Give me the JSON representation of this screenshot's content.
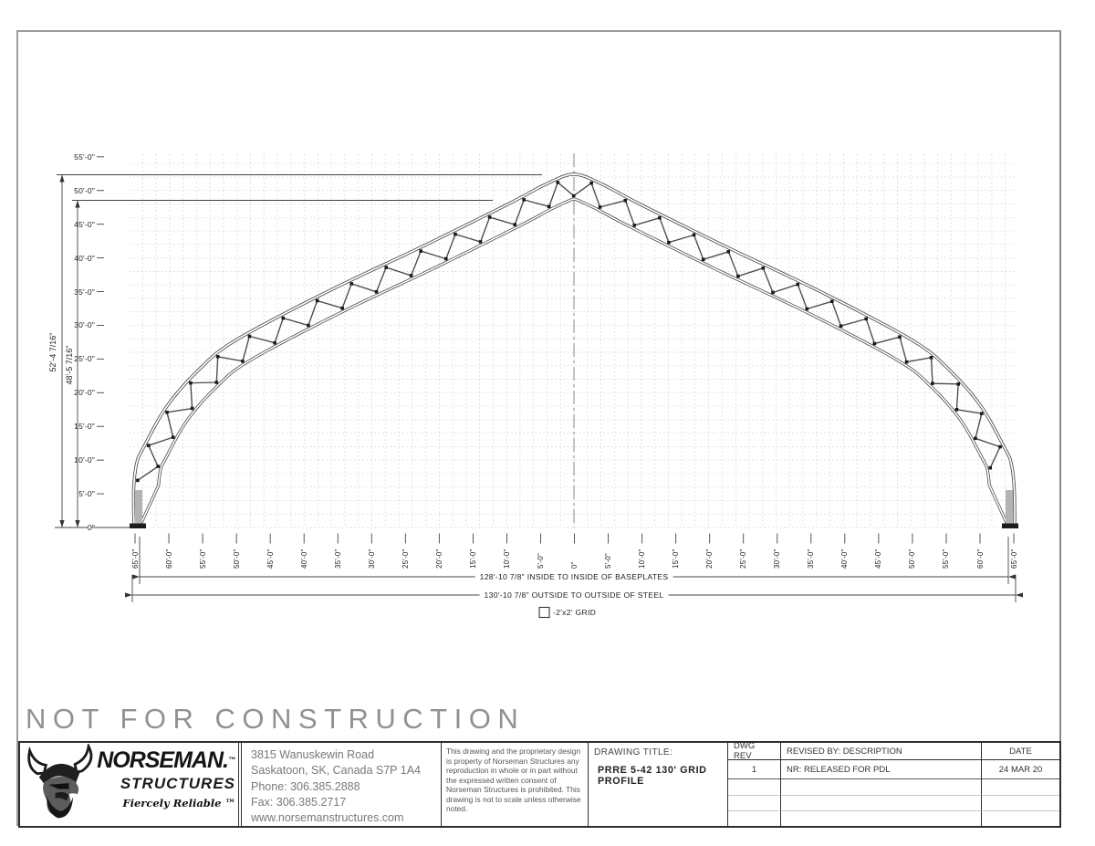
{
  "watermark": "NOT FOR CONSTRUCTION",
  "drawing": {
    "y_axis_labels": [
      "55'-0\"",
      "50'-0\"",
      "45'-0\"",
      "40'-0\"",
      "35'-0\"",
      "30'-0\"",
      "25'-0\"",
      "20'-0\"",
      "15'-0\"",
      "10'-0\"",
      "5'-0\"",
      "0\""
    ],
    "x_axis_labels": [
      "65'-0\"",
      "60'-0\"",
      "55'-0\"",
      "50'-0\"",
      "45'-0\"",
      "40'-0\"",
      "35'-0\"",
      "30'-0\"",
      "25'-0\"",
      "20'-0\"",
      "15'-0\"",
      "10'-0\"",
      "5'-0\"",
      "0\"",
      "5'-0\"",
      "10'-0\"",
      "15'-0\"",
      "20'-0\"",
      "25'-0\"",
      "30'-0\"",
      "35'-0\"",
      "40'-0\"",
      "45'-0\"",
      "50'-0\"",
      "55'-0\"",
      "60'-0\"",
      "65'-0\""
    ],
    "dim_height_outside": "52'-4 7/16\"",
    "dim_height_inside": "48'-5 7/16\"",
    "dim_width_inside": "128'-10 7/8\" INSIDE TO INSIDE OF BASEPLATES",
    "dim_width_outside": "130'-10 7/8\" OUTSIDE TO OUTSIDE OF STEEL",
    "grid_legend": "-2'x2' GRID"
  },
  "title_block": {
    "logo": {
      "name": "NORSEMAN.",
      "trademark": "™",
      "sub": "STRUCTURES",
      "tagline": "Fiercely Reliable ™"
    },
    "address_lines": [
      "3815 Wanuskewin Road",
      "Saskatoon, SK, Canada S7P 1A4",
      "Phone: 306.385.2888",
      "Fax: 306.385.2717",
      "www.norsemanstructures.com"
    ],
    "legal": "This drawing and the proprietary design is property of Norseman Structures any reproduction in whole or in part without the expressed written consent of Norseman Structures is prohibited. This drawing is not to scale unless otherwise noted.",
    "drawing_title_label": "DRAWING TITLE:",
    "drawing_title": "PRRE 5-42 130' GRID PROFILE",
    "dwg_rev_label": "DWG REV",
    "dwg_rev": "1",
    "revised_by_label": "REVISED BY: DESCRIPTION",
    "revision_desc": "NR: RELEASED FOR PDL",
    "date_label": "DATE",
    "date": "24 MAR 20"
  }
}
